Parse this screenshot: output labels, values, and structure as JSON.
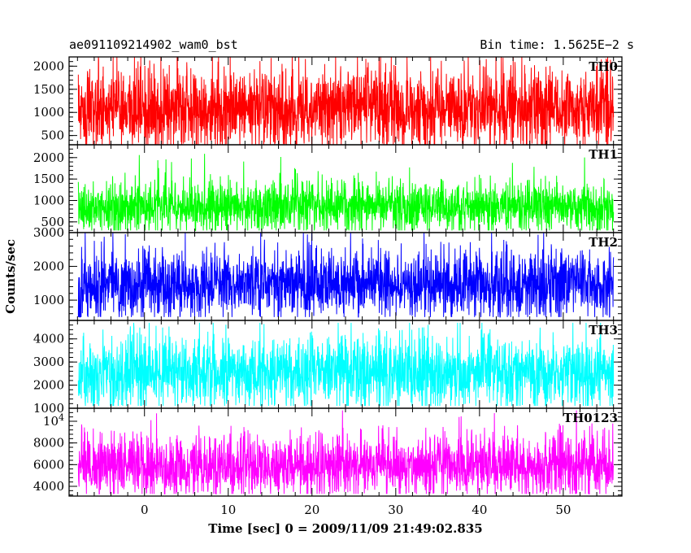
{
  "header": {
    "left_title": "ae091109214902_wam0_bst",
    "right_title": "Bin time: 1.5625E−2 s"
  },
  "chart_data": {
    "type": "line",
    "xlabel": "Time [sec] 0 = 2009/11/09 21:49:02.835",
    "ylabel": "Counts/sec",
    "xlim": [
      -9,
      57
    ],
    "x_ticks": [
      0,
      10,
      20,
      30,
      40,
      50
    ],
    "x_tick_labels": [
      "0",
      "10",
      "20",
      "30",
      "40",
      "50"
    ],
    "x_data_range": [
      -7.9,
      56.0
    ],
    "bin_time": 0.015625,
    "panels": [
      {
        "label": "TH0",
        "color": "#ff0000",
        "ylim": [
          300,
          2200
        ],
        "y_ticks": [
          500,
          1000,
          1500,
          2000
        ],
        "y_tick_labels": [
          "500",
          "1000",
          "1500",
          "2000"
        ],
        "mean": 1100,
        "min": 300,
        "max": 2200
      },
      {
        "label": "TH1",
        "color": "#00ff00",
        "ylim": [
          250,
          2300
        ],
        "y_ticks": [
          500,
          1000,
          1500,
          2000
        ],
        "y_tick_labels": [
          "500",
          "1000",
          "1500",
          "2000"
        ],
        "mean": 850,
        "min": 300,
        "max": 2200
      },
      {
        "label": "TH2",
        "color": "#0000ff",
        "ylim": [
          400,
          3000
        ],
        "y_ticks": [
          1000,
          2000,
          3000
        ],
        "y_tick_labels": [
          "1000",
          "2000",
          "3000"
        ],
        "mean": 1450,
        "min": 500,
        "max": 3000
      },
      {
        "label": "TH3",
        "color": "#00ffff",
        "ylim": [
          1000,
          4800
        ],
        "y_ticks": [
          1000,
          2000,
          3000,
          4000
        ],
        "y_tick_labels": [
          "1000",
          "2000",
          "3000",
          "4000"
        ],
        "mean": 2550,
        "min": 1100,
        "max": 4700
      },
      {
        "label": "TH0123",
        "color": "#ff00ff",
        "ylim": [
          3100,
          11200
        ],
        "y_ticks": [
          4000,
          6000,
          8000,
          10000
        ],
        "y_tick_labels": [
          "4000",
          "6000",
          "8000",
          "10⁴"
        ],
        "mean": 5900,
        "min": 3300,
        "max": 11000
      }
    ]
  }
}
